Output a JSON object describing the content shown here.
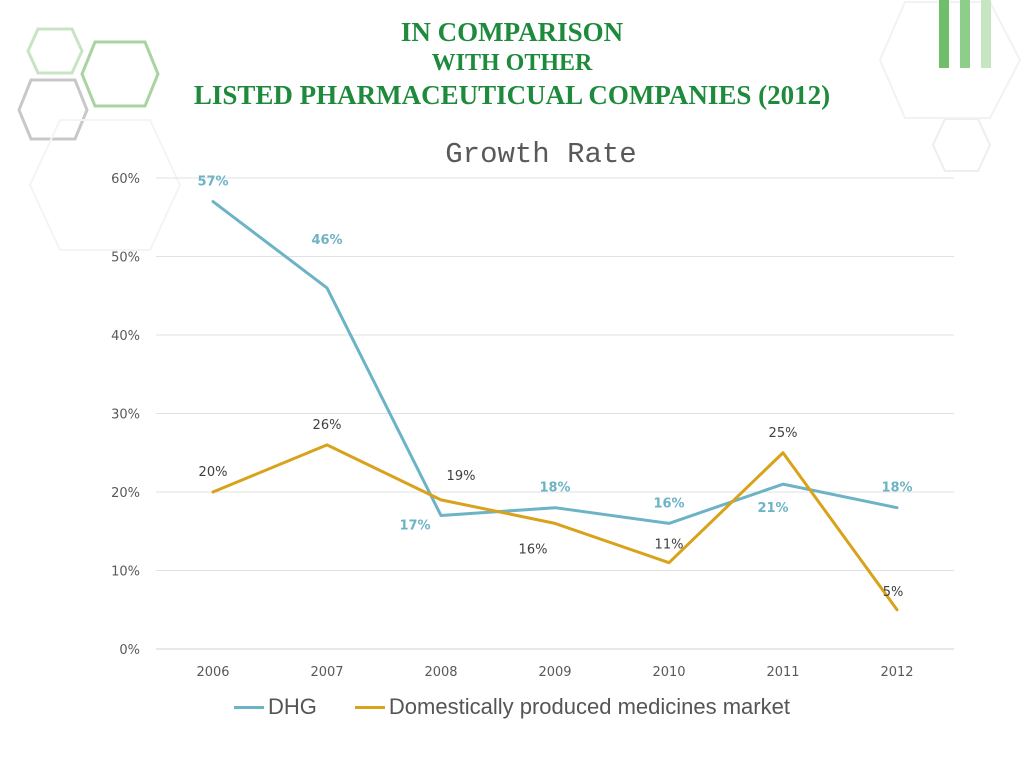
{
  "slide": {
    "title_line1": "IN COMPARISON",
    "title_line2": "WITH OTHER",
    "title_line3": "LISTED PHARMACEUTICUAL COMPANIES (2012)"
  },
  "colors": {
    "title": "#1e8a3c",
    "dhg": "#6db3c6",
    "market": "#d9a21b"
  },
  "chart_data": {
    "type": "line",
    "title": "Growth Rate",
    "xlabel": "",
    "ylabel": "",
    "categories": [
      "2006",
      "2007",
      "2008",
      "2009",
      "2010",
      "2011",
      "2012"
    ],
    "y_ticks": [
      "0%",
      "10%",
      "20%",
      "30%",
      "40%",
      "50%",
      "60%"
    ],
    "ylim": [
      0,
      60
    ],
    "grid": true,
    "legend_position": "bottom",
    "series": [
      {
        "name": "DHG",
        "color": "#6db3c6",
        "values": [
          57,
          46,
          17,
          18,
          16,
          21,
          18
        ],
        "labels": [
          "57%",
          "46%",
          "17%",
          "18%",
          "16%",
          "21%",
          "18%"
        ]
      },
      {
        "name": "Domestically produced medicines market",
        "color": "#d9a21b",
        "values": [
          20,
          26,
          19,
          16,
          11,
          25,
          5
        ],
        "labels": [
          "20%",
          "26%",
          "19%",
          "16%",
          "11%",
          "25%",
          "5%"
        ]
      }
    ]
  }
}
